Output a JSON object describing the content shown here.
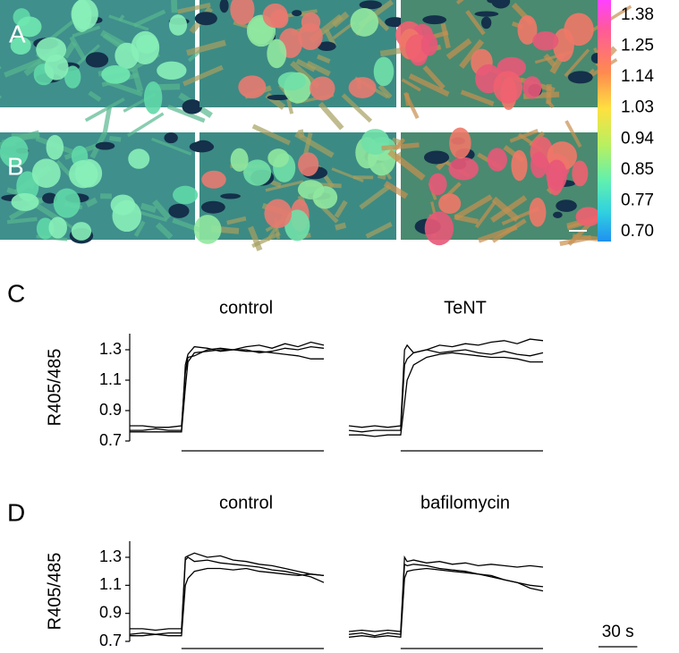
{
  "panels": [
    "A",
    "B",
    "C",
    "D"
  ],
  "colorbar": {
    "ticks": [
      {
        "value": 1.38,
        "label": "1.38"
      },
      {
        "value": 1.25,
        "label": "1.25"
      },
      {
        "value": 1.14,
        "label": "1.14"
      },
      {
        "value": 1.03,
        "label": "1.03"
      },
      {
        "value": 0.94,
        "label": "0.94"
      },
      {
        "value": 0.85,
        "label": "0.85"
      },
      {
        "value": 0.77,
        "label": "0.77"
      },
      {
        "value": 0.7,
        "label": "0.70"
      }
    ]
  },
  "scale_bar": {
    "value": 30,
    "label": "30 s"
  },
  "chart_data": [
    {
      "type": "line",
      "title": "control",
      "ylabel": "R405/485",
      "xlim": [
        0,
        150
      ],
      "ylim": [
        0.7,
        1.4
      ],
      "yticks": [
        1.3,
        1.1,
        0.9,
        0.7
      ],
      "stimulus": [
        40,
        150
      ],
      "x": [
        0,
        10,
        20,
        30,
        40,
        43,
        45,
        50,
        60,
        70,
        80,
        90,
        100,
        110,
        120,
        130,
        140,
        150
      ],
      "series": [
        {
          "color": "#000000",
          "values": [
            0.8,
            0.8,
            0.79,
            0.79,
            0.8,
            1.15,
            1.25,
            1.26,
            1.3,
            1.31,
            1.3,
            1.32,
            1.33,
            1.31,
            1.34,
            1.32,
            1.35,
            1.33
          ]
        },
        {
          "color": "#000000",
          "values": [
            0.77,
            0.77,
            0.78,
            0.77,
            0.77,
            1.2,
            1.27,
            1.32,
            1.31,
            1.29,
            1.3,
            1.3,
            1.28,
            1.29,
            1.31,
            1.3,
            1.32,
            1.31
          ]
        },
        {
          "color": "#000000",
          "values": [
            0.76,
            0.76,
            0.76,
            0.76,
            0.76,
            1.05,
            1.22,
            1.28,
            1.29,
            1.3,
            1.3,
            1.29,
            1.29,
            1.28,
            1.27,
            1.26,
            1.24,
            1.24
          ]
        }
      ]
    },
    {
      "type": "line",
      "title": "TeNT",
      "xlim": [
        0,
        150
      ],
      "ylim": [
        0.7,
        1.4
      ],
      "stimulus": [
        40,
        150
      ],
      "x": [
        0,
        10,
        20,
        30,
        40,
        43,
        45,
        50,
        60,
        70,
        80,
        90,
        100,
        110,
        120,
        130,
        140,
        150
      ],
      "series": [
        {
          "color": "#000000",
          "values": [
            0.8,
            0.79,
            0.8,
            0.79,
            0.8,
            1.3,
            1.33,
            1.28,
            1.3,
            1.33,
            1.32,
            1.34,
            1.33,
            1.35,
            1.36,
            1.34,
            1.37,
            1.36
          ]
        },
        {
          "color": "#000000",
          "values": [
            0.77,
            0.76,
            0.77,
            0.77,
            0.77,
            1.2,
            1.24,
            1.28,
            1.3,
            1.28,
            1.29,
            1.3,
            1.28,
            1.27,
            1.29,
            1.27,
            1.26,
            1.28
          ]
        },
        {
          "color": "#000000",
          "values": [
            0.74,
            0.74,
            0.73,
            0.74,
            0.74,
            0.95,
            1.1,
            1.2,
            1.25,
            1.27,
            1.28,
            1.27,
            1.26,
            1.25,
            1.25,
            1.24,
            1.22,
            1.22
          ]
        }
      ]
    },
    {
      "type": "line",
      "title": "control",
      "ylabel": "R405/485",
      "xlim": [
        0,
        150
      ],
      "ylim": [
        0.7,
        1.4
      ],
      "yticks": [
        1.3,
        1.1,
        0.9,
        0.7
      ],
      "stimulus": [
        40,
        150
      ],
      "x": [
        0,
        10,
        20,
        30,
        40,
        43,
        45,
        50,
        60,
        70,
        80,
        90,
        100,
        110,
        120,
        130,
        140,
        150
      ],
      "series": [
        {
          "color": "#000000",
          "values": [
            0.79,
            0.79,
            0.78,
            0.79,
            0.79,
            1.3,
            1.31,
            1.33,
            1.3,
            1.31,
            1.28,
            1.27,
            1.25,
            1.24,
            1.22,
            1.2,
            1.18,
            1.17
          ]
        },
        {
          "color": "#000000",
          "values": [
            0.75,
            0.76,
            0.75,
            0.76,
            0.76,
            1.28,
            1.3,
            1.27,
            1.28,
            1.26,
            1.25,
            1.24,
            1.23,
            1.21,
            1.2,
            1.18,
            1.16,
            1.12
          ]
        },
        {
          "color": "#000000",
          "values": [
            0.74,
            0.74,
            0.75,
            0.74,
            0.74,
            1.1,
            1.15,
            1.2,
            1.22,
            1.22,
            1.21,
            1.22,
            1.2,
            1.19,
            1.18,
            1.17,
            1.18,
            1.17
          ]
        }
      ]
    },
    {
      "type": "line",
      "title": "bafilomycin",
      "xlim": [
        0,
        150
      ],
      "ylim": [
        0.7,
        1.4
      ],
      "stimulus": [
        40,
        150
      ],
      "x": [
        0,
        10,
        20,
        30,
        40,
        43,
        45,
        50,
        60,
        70,
        80,
        90,
        100,
        110,
        120,
        130,
        140,
        150
      ],
      "series": [
        {
          "color": "#000000",
          "values": [
            0.77,
            0.78,
            0.77,
            0.78,
            0.77,
            1.3,
            1.27,
            1.28,
            1.26,
            1.27,
            1.25,
            1.26,
            1.24,
            1.25,
            1.24,
            1.23,
            1.24,
            1.23
          ]
        },
        {
          "color": "#000000",
          "values": [
            0.75,
            0.76,
            0.74,
            0.76,
            0.75,
            1.25,
            1.24,
            1.25,
            1.24,
            1.22,
            1.21,
            1.2,
            1.18,
            1.17,
            1.14,
            1.12,
            1.1,
            1.09
          ]
        },
        {
          "color": "#000000",
          "values": [
            0.73,
            0.74,
            0.73,
            0.74,
            0.73,
            1.15,
            1.2,
            1.21,
            1.22,
            1.21,
            1.2,
            1.19,
            1.18,
            1.16,
            1.14,
            1.12,
            1.08,
            1.06
          ]
        }
      ]
    }
  ]
}
